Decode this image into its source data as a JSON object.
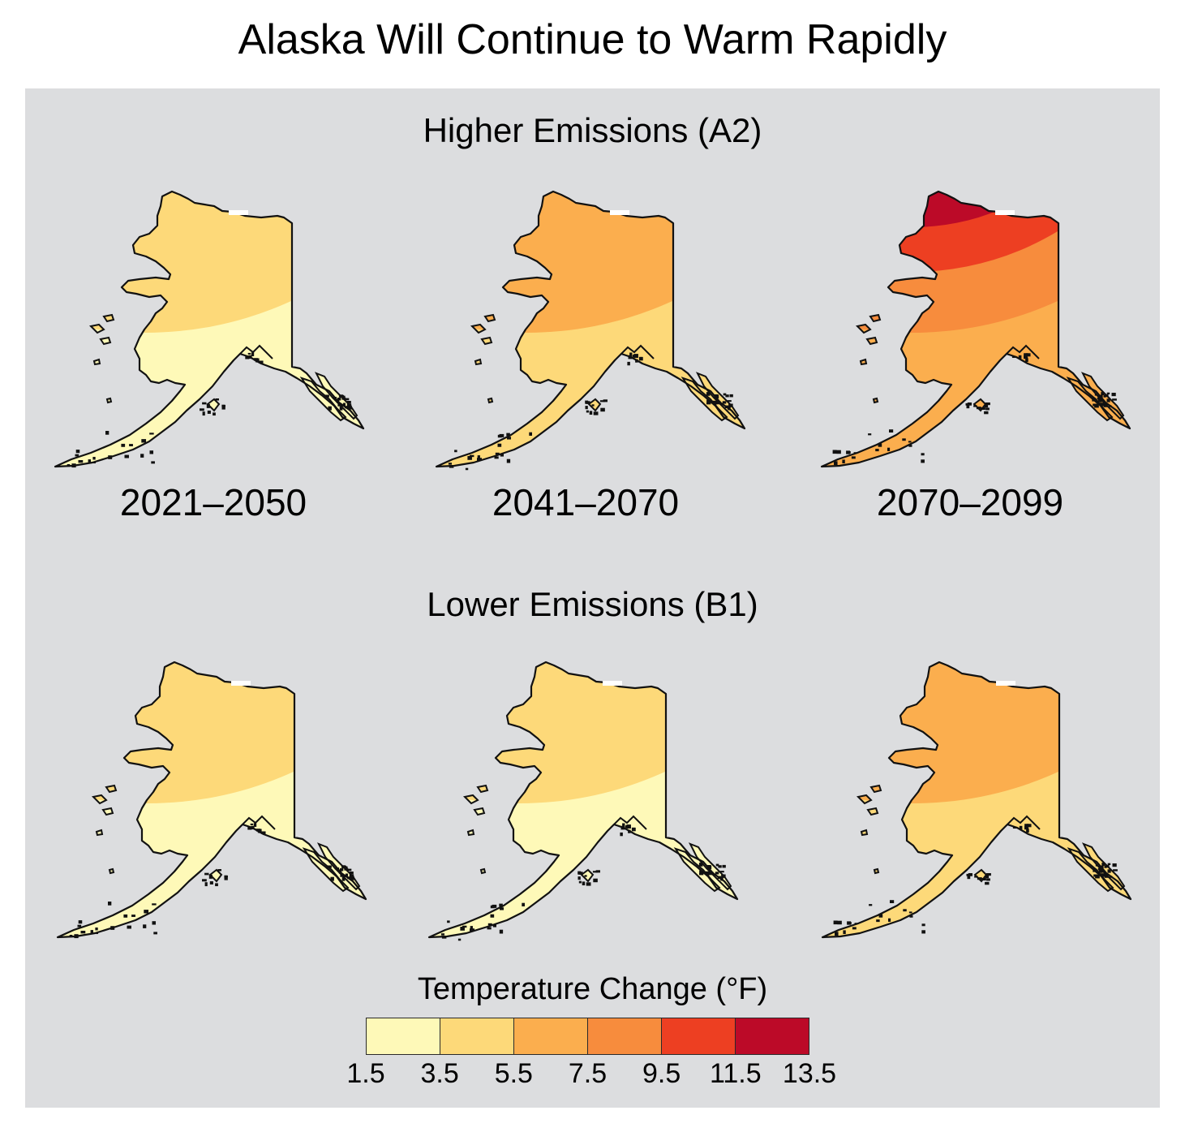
{
  "title": "Alaska Will Continue to Warm Rapidly",
  "scenarios": [
    {
      "title": "Higher Emissions (A2)",
      "panels": [
        {
          "period": "2021–2050",
          "zones": [
            "#fef9b8",
            "#fdd979"
          ]
        },
        {
          "period": "2041–2070",
          "zones": [
            "#fdd979",
            "#fbae4e"
          ]
        },
        {
          "period": "2070–2099",
          "zones": [
            "#fbae4e",
            "#f78c3d",
            "#ed3f22",
            "#bc0a28"
          ]
        }
      ]
    },
    {
      "title": "Lower Emissions (B1)",
      "panels": [
        {
          "period": "",
          "zones": [
            "#fef9b8",
            "#fdd979"
          ]
        },
        {
          "period": "",
          "zones": [
            "#fef9b8",
            "#fdd979"
          ]
        },
        {
          "period": "",
          "zones": [
            "#fdd979",
            "#fbae4e"
          ]
        }
      ]
    }
  ],
  "legend": {
    "title": "Temperature Change (°F)",
    "ticks": [
      "1.5",
      "3.5",
      "5.5",
      "7.5",
      "9.5",
      "11.5",
      "13.5"
    ],
    "colors": [
      "#fef9b8",
      "#fdd979",
      "#fbae4e",
      "#f78c3d",
      "#ed3f22",
      "#bc0a28"
    ]
  }
}
